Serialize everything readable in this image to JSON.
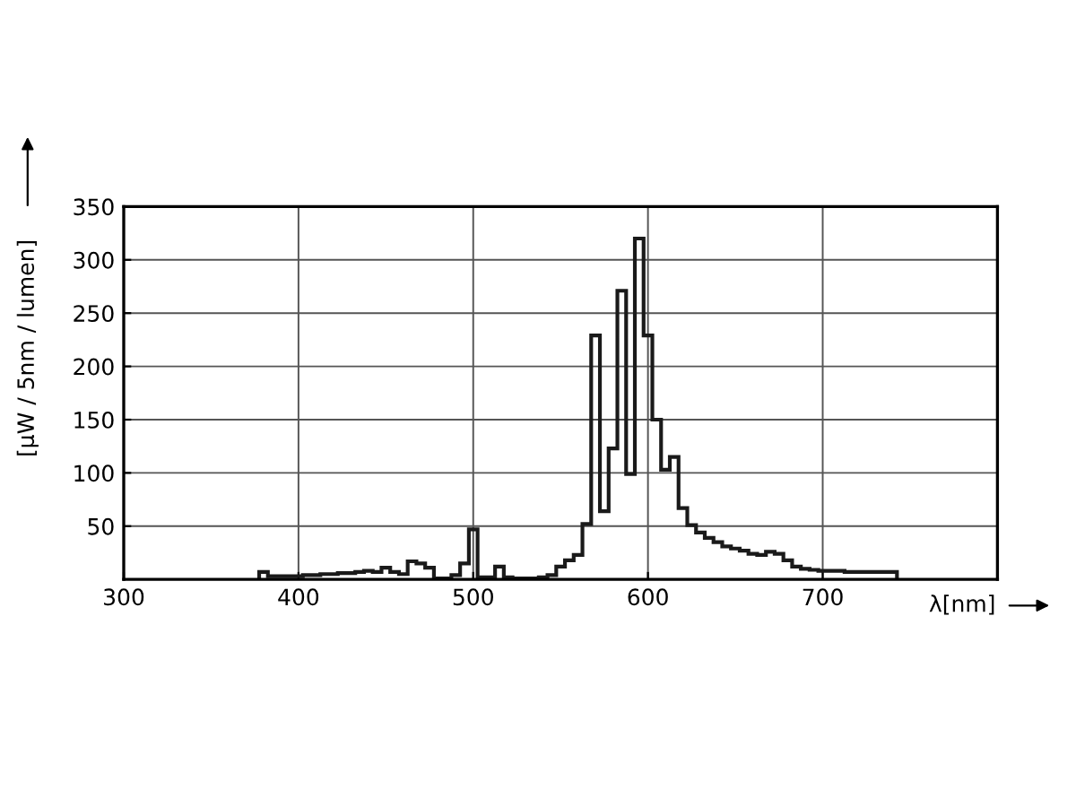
{
  "chart_data": {
    "type": "histogram",
    "bins": [
      377.5,
      382.5,
      387.5,
      392.5,
      397.5,
      402.5,
      407.5,
      412.5,
      417.5,
      422.5,
      427.5,
      432.5,
      437.5,
      442.5,
      447.5,
      452.5,
      457.5,
      462.5,
      467.5,
      472.5,
      477.5,
      482.5,
      487.5,
      492.5,
      497.5,
      502.5,
      507.5,
      512.5,
      517.5,
      522.5,
      527.5,
      532.5,
      537.5,
      542.5,
      547.5,
      552.5,
      557.5,
      562.5,
      567.5,
      572.5,
      577.5,
      582.5,
      587.5,
      592.5,
      597.5,
      602.5,
      607.5,
      612.5,
      617.5,
      622.5,
      627.5,
      632.5,
      637.5,
      642.5,
      647.5,
      652.5,
      657.5,
      662.5,
      667.5,
      672.5,
      677.5,
      682.5,
      687.5,
      692.5,
      697.5,
      702.5,
      707.5,
      712.5,
      717.5,
      722.5,
      727.5,
      732.5,
      737.5,
      742.5
    ],
    "values": [
      7,
      3,
      3,
      3,
      3,
      4,
      4,
      5,
      5,
      6,
      6,
      7,
      8,
      7,
      11,
      7,
      5,
      17,
      15,
      11,
      1,
      1,
      4,
      15,
      47,
      2,
      2,
      12,
      2,
      1,
      1,
      1,
      2,
      4,
      12,
      18,
      23,
      52,
      229,
      64,
      123,
      271,
      99,
      320,
      229,
      150,
      103,
      115,
      67,
      51,
      44,
      39,
      35,
      31,
      29,
      27,
      24,
      23,
      26,
      24,
      18,
      12,
      10,
      9,
      8,
      8,
      8,
      7,
      7,
      7,
      7,
      7,
      7
    ],
    "color": "#1a1a1a",
    "xlabel": "λ[nm]",
    "ylabel": "[μW / 5nm / lumen]",
    "xlim": [
      300,
      800
    ],
    "xticks": [
      300,
      400,
      500,
      600,
      700
    ],
    "ylim": [
      0,
      350
    ],
    "yticks": [
      50,
      100,
      150,
      200,
      250,
      300,
      350
    ],
    "grid": true
  }
}
